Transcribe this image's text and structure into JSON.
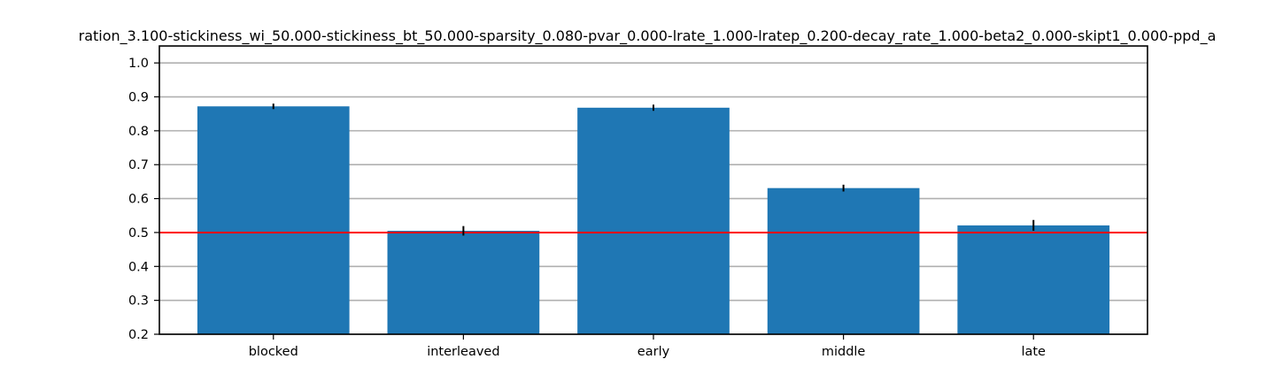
{
  "chart_data": {
    "type": "bar",
    "title": "ration_3.100-stickiness_wi_50.000-stickiness_bt_50.000-sparsity_0.080-pvar_0.000-lrate_1.000-lratep_0.200-decay_rate_1.000-beta2_0.000-skipt1_0.000-ppd_a",
    "xlabel": "",
    "ylabel": "",
    "categories": [
      "blocked",
      "interleaved",
      "early",
      "middle",
      "late"
    ],
    "values": [
      0.872,
      0.505,
      0.868,
      0.631,
      0.521
    ],
    "errors": [
      0.008,
      0.014,
      0.009,
      0.01,
      0.016
    ],
    "ylim": [
      0.2,
      1.05
    ],
    "yticks": [
      0.2,
      0.3,
      0.4,
      0.5,
      0.6,
      0.7,
      0.8,
      0.9,
      1.0
    ],
    "ytick_labels": [
      "0.2",
      "0.3",
      "0.4",
      "0.5",
      "0.6",
      "0.7",
      "0.8",
      "0.9",
      "1.0"
    ],
    "reference_line": 0.5,
    "grid": "horizontal",
    "colors": {
      "bar": "#1f77b4",
      "reference_line": "#ff0000",
      "grid": "#b0b0b0",
      "error_bar": "#000000"
    }
  }
}
